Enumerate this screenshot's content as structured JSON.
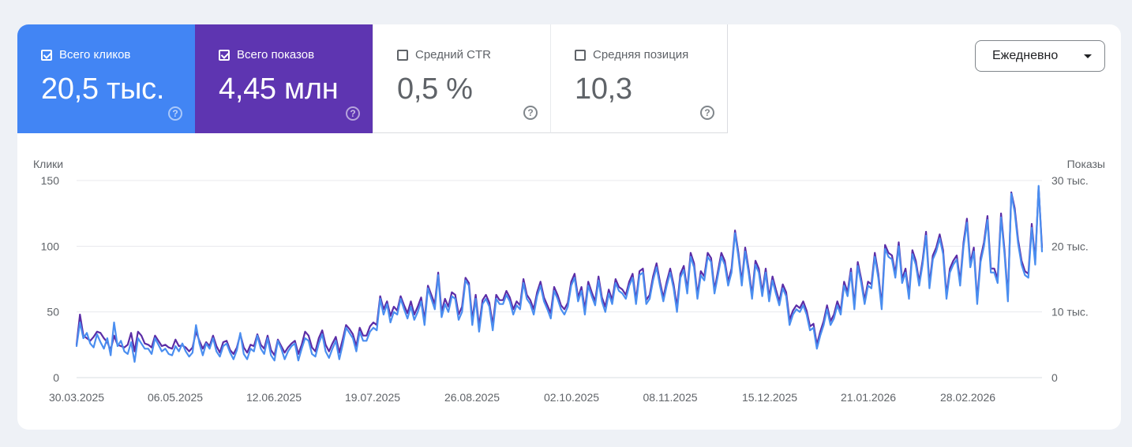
{
  "colors": {
    "clicks": "#4285f4",
    "impressions": "#5e35b1",
    "clicks_line": "#4a8ef0",
    "impressions_line": "#5b2ca6",
    "grid": "#e8eaed",
    "axis_text": "#5f6368"
  },
  "metrics": [
    {
      "label": "Всего кликов",
      "value": "20,5 тыс.",
      "checked": true,
      "help_icon": "question-circle-icon"
    },
    {
      "label": "Всего показов",
      "value": "4,45 млн",
      "checked": true,
      "help_icon": "question-circle-icon"
    },
    {
      "label": "Средний CTR",
      "value": "0,5 %",
      "checked": false,
      "help_icon": "question-circle-icon"
    },
    {
      "label": "Средняя позиция",
      "value": "10,3",
      "checked": false,
      "help_icon": "question-circle-icon"
    }
  ],
  "period_dropdown": {
    "value": "Ежедневно",
    "icon": "caret-down-icon"
  },
  "chart_data": {
    "type": "line",
    "left_axis_title": "Клики",
    "right_axis_title": "Показы",
    "left_ticks": [
      "150",
      "100",
      "50",
      "0"
    ],
    "right_ticks": [
      "30 тыс.",
      "20 тыс.",
      "10 тыс.",
      "0"
    ],
    "ylim_left": [
      0,
      150
    ],
    "ylim_right": [
      0,
      30000
    ],
    "x_ticks": [
      "30.03.2025",
      "06.05.2025",
      "12.06.2025",
      "19.07.2025",
      "26.08.2025",
      "02.10.2025",
      "08.11.2025",
      "15.12.2025",
      "21.01.2026",
      "28.02.2026"
    ],
    "grid": true,
    "series": [
      {
        "name": "Клики",
        "axis": "left",
        "values": [
          24,
          42,
          30,
          34,
          26,
          23,
          33,
          27,
          22,
          30,
          17,
          42,
          24,
          28,
          20,
          18,
          27,
          12,
          30,
          26,
          22,
          22,
          18,
          30,
          25,
          20,
          22,
          18,
          17,
          24,
          20,
          26,
          20,
          16,
          19,
          40,
          26,
          17,
          26,
          22,
          30,
          20,
          16,
          24,
          26,
          19,
          14,
          21,
          34,
          18,
          14,
          22,
          20,
          32,
          22,
          18,
          30,
          17,
          13,
          28,
          22,
          14,
          20,
          24,
          26,
          13,
          22,
          30,
          28,
          18,
          16,
          26,
          33,
          20,
          15,
          22,
          28,
          14,
          25,
          38,
          34,
          30,
          20,
          35,
          28,
          28,
          35,
          38,
          36,
          60,
          48,
          56,
          42,
          50,
          48,
          60,
          52,
          45,
          54,
          44,
          50,
          58,
          40,
          68,
          60,
          52,
          78,
          46,
          56,
          50,
          62,
          60,
          44,
          50,
          74,
          70,
          40,
          60,
          35,
          56,
          60,
          54,
          36,
          60,
          56,
          56,
          63,
          58,
          48,
          55,
          52,
          72,
          60,
          56,
          48,
          62,
          70,
          58,
          52,
          45,
          66,
          60,
          52,
          48,
          54,
          70,
          76,
          58,
          66,
          48,
          70,
          62,
          55,
          74,
          58,
          50,
          64,
          56,
          72,
          66,
          64,
          60,
          70,
          76,
          56,
          78,
          80,
          56,
          60,
          74,
          84,
          70,
          58,
          70,
          80,
          68,
          50,
          76,
          82,
          64,
          92,
          84,
          60,
          78,
          74,
          92,
          88,
          64,
          78,
          92,
          86,
          70,
          80,
          110,
          92,
          70,
          96,
          80,
          60,
          86,
          80,
          62,
          80,
          58,
          74,
          64,
          55,
          68,
          62,
          40,
          48,
          52,
          50,
          55,
          48,
          36,
          38,
          22,
          32,
          40,
          52,
          40,
          45,
          55,
          48,
          70,
          62,
          80,
          52,
          85,
          72,
          56,
          70,
          68,
          92,
          76,
          52,
          98,
          92,
          90,
          76,
          100,
          72,
          80,
          60,
          94,
          86,
          70,
          86,
          108,
          68,
          90,
          96,
          106,
          94,
          60,
          80,
          86,
          90,
          70,
          100,
          118,
          84,
          96,
          56,
          88,
          100,
          120,
          80,
          80,
          72,
          122,
          94,
          58,
          140,
          126,
          102,
          86,
          78,
          76,
          114,
          86,
          146,
          96
        ]
      },
      {
        "name": "Показы",
        "axis": "right",
        "values": [
          5000,
          9600,
          6400,
          6000,
          5600,
          6200,
          7000,
          6800,
          6000,
          5400,
          4200,
          6400,
          5000,
          4800,
          4600,
          5000,
          6800,
          4000,
          7000,
          6400,
          5200,
          5000,
          4600,
          6400,
          5600,
          4800,
          5000,
          4600,
          4400,
          5800,
          4800,
          4900,
          4600,
          4000,
          4600,
          7000,
          5600,
          4400,
          5400,
          4800,
          6400,
          4800,
          3800,
          5400,
          5600,
          4200,
          3600,
          4600,
          6600,
          4600,
          3800,
          5000,
          4800,
          6600,
          5000,
          4400,
          6400,
          4200,
          3400,
          5800,
          4800,
          3800,
          4600,
          5200,
          5600,
          3600,
          5000,
          7000,
          6400,
          4600,
          4000,
          6000,
          7200,
          5000,
          4000,
          5200,
          6200,
          3800,
          5800,
          8000,
          7400,
          6600,
          4800,
          7600,
          6400,
          6400,
          7800,
          8400,
          8000,
          12400,
          10400,
          11600,
          9400,
          10800,
          10200,
          12400,
          11000,
          9800,
          11600,
          9600,
          10800,
          12200,
          8800,
          14000,
          12600,
          11200,
          16000,
          10000,
          12000,
          10800,
          13000,
          12600,
          9600,
          10800,
          15200,
          14400,
          8800,
          12600,
          7800,
          11800,
          12600,
          11400,
          8000,
          12600,
          11800,
          11800,
          13200,
          12200,
          10400,
          11600,
          11000,
          15000,
          12600,
          11800,
          10400,
          13000,
          14600,
          12200,
          11000,
          9800,
          13800,
          12600,
          11000,
          10400,
          11400,
          14600,
          15800,
          12200,
          13800,
          10400,
          14600,
          13000,
          11600,
          15400,
          12200,
          10800,
          13400,
          11800,
          15000,
          13800,
          13400,
          12600,
          14600,
          15800,
          11800,
          16200,
          16600,
          11800,
          12600,
          15400,
          17400,
          14600,
          12200,
          14600,
          16600,
          14200,
          10800,
          15800,
          17000,
          13400,
          19000,
          17400,
          12600,
          16200,
          15400,
          19000,
          18200,
          13400,
          16200,
          19000,
          17800,
          14600,
          16600,
          22400,
          19000,
          14600,
          19800,
          16600,
          12600,
          17800,
          16600,
          13000,
          16600,
          12200,
          15400,
          13400,
          11600,
          14200,
          13000,
          8800,
          10200,
          11000,
          10600,
          11600,
          10200,
          7800,
          8200,
          5000,
          7000,
          8600,
          11000,
          8600,
          9600,
          11600,
          10200,
          14600,
          13000,
          16600,
          11000,
          17600,
          15000,
          11800,
          14600,
          14200,
          19000,
          15800,
          11000,
          20200,
          19000,
          18600,
          15800,
          20600,
          15000,
          16600,
          12600,
          19400,
          17800,
          14600,
          17800,
          22200,
          14200,
          18600,
          19800,
          21800,
          19400,
          12600,
          16600,
          17800,
          18600,
          14600,
          20600,
          24200,
          17400,
          19800,
          11800,
          18200,
          20600,
          24600,
          16600,
          16600,
          15000,
          25000,
          19400,
          12200,
          28200,
          25800,
          21000,
          17800,
          16200,
          15800,
          23400,
          17800,
          29000,
          19800
        ]
      }
    ]
  }
}
